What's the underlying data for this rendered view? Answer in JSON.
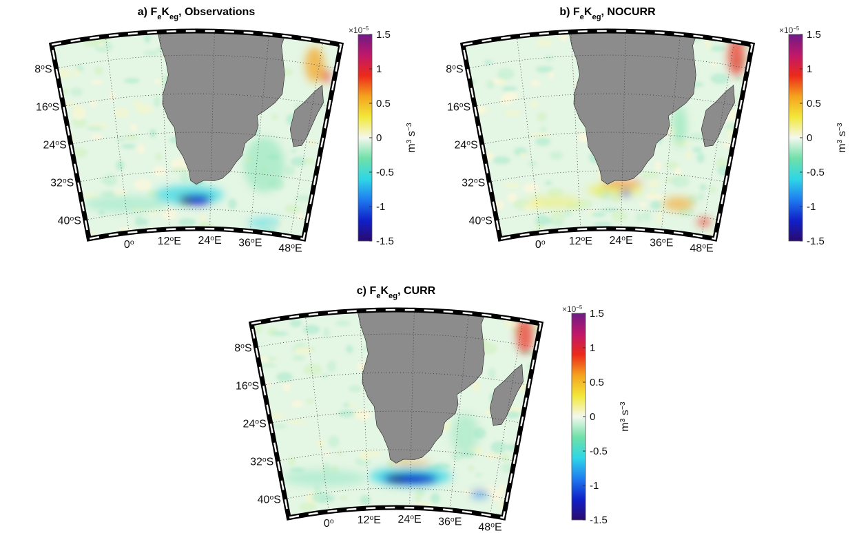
{
  "panels": [
    {
      "title": [
        {
          "text": "a) F"
        },
        {
          "text": "e",
          "sub": true
        },
        {
          "text": "K"
        },
        {
          "text": "eg",
          "sub": true
        },
        {
          "text": ", Observations"
        }
      ],
      "lat_labels": [
        [
          "8",
          "o",
          "S"
        ],
        [
          "16",
          "o",
          "S"
        ],
        [
          "24",
          "o",
          "S"
        ],
        [
          "32",
          "o",
          "S"
        ],
        [
          "40",
          "o",
          "S"
        ]
      ],
      "lon_labels": [
        [
          "0",
          "o"
        ],
        [
          "12",
          "o",
          "E"
        ],
        [
          "24",
          "o",
          "E"
        ],
        [
          "36",
          "o",
          "E"
        ],
        [
          "48",
          "o",
          "E"
        ]
      ],
      "colorbar": {
        "exponent": [
          "×10",
          "−5"
        ],
        "label": [
          "m",
          "3",
          " s",
          "−3"
        ],
        "clim": [
          -1.5,
          1.5
        ],
        "ticks": [
          -1.5,
          -1,
          -0.5,
          0,
          0.5,
          1,
          1.5
        ],
        "colormap": [
          "#2a0a6e",
          "#1020c8",
          "#1e7cf0",
          "#2fd6e6",
          "#6fe0a8",
          "#f4f8ee",
          "#f2e83a",
          "#f5a31e",
          "#ec2a1a",
          "#c0186a",
          "#6e1a86"
        ]
      }
    },
    {
      "title": [
        {
          "text": "b) F"
        },
        {
          "text": "e",
          "sub": true
        },
        {
          "text": "K"
        },
        {
          "text": "eg",
          "sub": true
        },
        {
          "text": ", NOCURR"
        }
      ],
      "lat_labels": [
        [
          "8",
          "o",
          "S"
        ],
        [
          "16",
          "o",
          "S"
        ],
        [
          "24",
          "o",
          "S"
        ],
        [
          "32",
          "o",
          "S"
        ],
        [
          "40",
          "o",
          "S"
        ]
      ],
      "lon_labels": [
        [
          "0",
          "o"
        ],
        [
          "12",
          "o",
          "E"
        ],
        [
          "24",
          "o",
          "E"
        ],
        [
          "36",
          "o",
          "E"
        ],
        [
          "48",
          "o",
          "E"
        ]
      ],
      "colorbar": {
        "exponent": [
          "×10",
          "−5"
        ],
        "label": [
          "m",
          "3",
          " s",
          "−3"
        ],
        "clim": [
          -1.5,
          1.5
        ],
        "ticks": [
          -1.5,
          -1,
          -0.5,
          0,
          0.5,
          1,
          1.5
        ],
        "colormap": [
          "#2a0a6e",
          "#1020c8",
          "#1e7cf0",
          "#2fd6e6",
          "#6fe0a8",
          "#f4f8ee",
          "#f2e83a",
          "#f5a31e",
          "#ec2a1a",
          "#c0186a",
          "#6e1a86"
        ]
      }
    },
    {
      "title": [
        {
          "text": "c) F"
        },
        {
          "text": "e",
          "sub": true
        },
        {
          "text": "K"
        },
        {
          "text": "eg",
          "sub": true
        },
        {
          "text": ", CURR"
        }
      ],
      "lat_labels": [
        [
          "8",
          "o",
          "S"
        ],
        [
          "16",
          "o",
          "S"
        ],
        [
          "24",
          "o",
          "S"
        ],
        [
          "32",
          "o",
          "S"
        ],
        [
          "40",
          "o",
          "S"
        ]
      ],
      "lon_labels": [
        [
          "0",
          "o"
        ],
        [
          "12",
          "o",
          "E"
        ],
        [
          "24",
          "o",
          "E"
        ],
        [
          "36",
          "o",
          "E"
        ],
        [
          "48",
          "o",
          "E"
        ]
      ],
      "colorbar": {
        "exponent": [
          "×10",
          "−5"
        ],
        "label": [
          "m",
          "3",
          " s",
          "−3"
        ],
        "clim": [
          -1.5,
          1.5
        ],
        "ticks": [
          -1.5,
          -1,
          -0.5,
          0,
          0.5,
          1,
          1.5
        ],
        "colormap": [
          "#2a0a6e",
          "#1020c8",
          "#1e7cf0",
          "#2fd6e6",
          "#6fe0a8",
          "#f4f8ee",
          "#f2e83a",
          "#f5a31e",
          "#ec2a1a",
          "#c0186a",
          "#6e1a86"
        ]
      }
    }
  ]
}
